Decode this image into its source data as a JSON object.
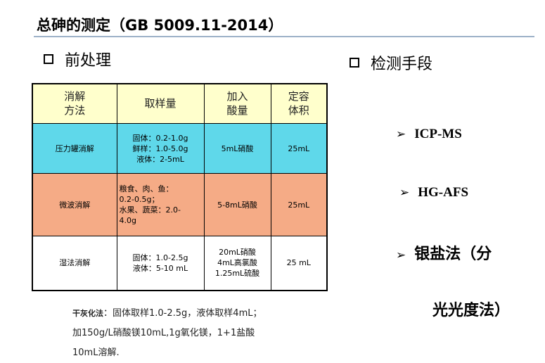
{
  "title": "总砷的测定（GB 5009.11-2014）",
  "left_section": "前处理",
  "right_section": "检测手段",
  "table": {
    "headers": [
      {
        "line1": "消解",
        "line2": "方法"
      },
      {
        "line1": "取样量",
        "line2": ""
      },
      {
        "line1": "加入",
        "line2": "酸量"
      },
      {
        "line1": "定容",
        "line2": "体积"
      }
    ],
    "rows": [
      {
        "method": "压力罐消解",
        "sample": [
          "固体：0.2-1.0g",
          "鲜样：1.0-5.0g",
          "液体：2-5mL"
        ],
        "acid": [
          "5mL硝酸"
        ],
        "volume": "25mL"
      },
      {
        "method": "微波消解",
        "sample": [
          "粮食、肉、鱼：",
          "0.2-0.5g；",
          "水果、蔬菜：2.0-",
          "4.0g"
        ],
        "acid": [
          "5-8mL硝酸"
        ],
        "volume": "25mL"
      },
      {
        "method": "湿法消解",
        "sample": [
          "固体：1.0-2.5g",
          "液体：5-10 mL"
        ],
        "acid": [
          "20mL硝酸",
          "4mL高氯酸",
          "1.25mL硫酸"
        ],
        "volume": "25 mL"
      }
    ]
  },
  "methods": [
    "ICP-MS",
    "HG-AFS",
    "银盐法（分"
  ],
  "methods_continued": "光光度法）",
  "note": {
    "label": "干灰化法",
    "line1": "：固体取样1.0-2.5g，液体取样4mL；",
    "line2": "加150g/L硝酸镁10mL,1g氧化镁，1+1盐酸",
    "line3": "10mL溶解."
  },
  "colors": {
    "header_row": "#ffffcc",
    "row1": "#5fd8ea",
    "row2": "#f5ab86",
    "row3": "#ffffff",
    "rule": "#9db1c8"
  }
}
